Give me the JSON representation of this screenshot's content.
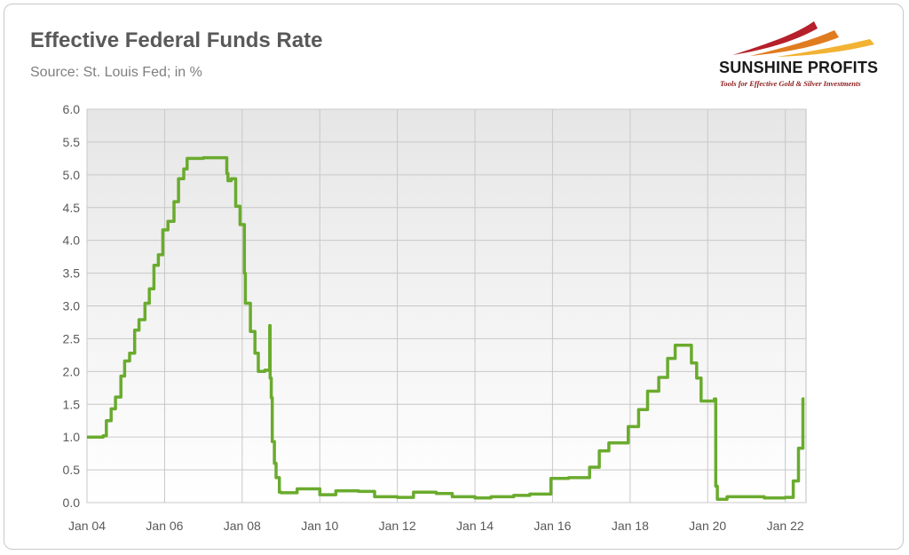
{
  "header": {
    "title": "Effective Federal Funds Rate",
    "subtitle": "Source: St. Louis Fed; in %"
  },
  "logo": {
    "name": "SUNSHINE PROFITS",
    "tagline": "Tools for Effective Gold & Silver Investments",
    "colors": [
      "#b5202a",
      "#e07b20",
      "#f2b233"
    ]
  },
  "chart_data": {
    "type": "line",
    "title": "Effective Federal Funds Rate",
    "subtitle": "Source: St. Louis Fed; in %",
    "xlabel": "",
    "ylabel": "",
    "x_axis_type": "date",
    "xlim": [
      "2004-01-01",
      "2022-07-15"
    ],
    "ylim": [
      0,
      6
    ],
    "y_ticks": [
      "0.0",
      "0.5",
      "1.0",
      "1.5",
      "2.0",
      "2.5",
      "3.0",
      "3.5",
      "4.0",
      "4.5",
      "5.0",
      "5.5",
      "6.0"
    ],
    "x_ticks": [
      {
        "label": "Jan 04",
        "date": "2004-01-01"
      },
      {
        "label": "Jan 06",
        "date": "2006-01-01"
      },
      {
        "label": "Jan 08",
        "date": "2008-01-01"
      },
      {
        "label": "Jan 10",
        "date": "2010-01-01"
      },
      {
        "label": "Jan 12",
        "date": "2012-01-01"
      },
      {
        "label": "Jan 14",
        "date": "2014-01-01"
      },
      {
        "label": "Jan 16",
        "date": "2016-01-01"
      },
      {
        "label": "Jan 18",
        "date": "2018-01-01"
      },
      {
        "label": "Jan 20",
        "date": "2020-01-01"
      },
      {
        "label": "Jan 22",
        "date": "2022-01-01"
      }
    ],
    "grid": true,
    "line_color": "#6aab2e",
    "series": [
      {
        "x": [
          "2004-01-01",
          "2004-06-01",
          "2004-07-01",
          "2004-08-15",
          "2004-09-25",
          "2004-11-15",
          "2004-12-20",
          "2005-02-05",
          "2005-03-25",
          "2005-05-05",
          "2005-06-30",
          "2005-08-10",
          "2005-09-22",
          "2005-11-03",
          "2005-12-15",
          "2006-02-01",
          "2006-03-30",
          "2006-05-12",
          "2006-06-30",
          "2006-08-01",
          "2007-01-01",
          "2007-07-01",
          "2007-08-09",
          "2007-08-20",
          "2007-09-19",
          "2007-11-01",
          "2007-12-12",
          "2008-01-22",
          "2008-01-31",
          "2008-03-19",
          "2008-04-30",
          "2008-06-01",
          "2008-08-01",
          "2008-09-16",
          "2008-09-20",
          "2008-10-01",
          "2008-10-10",
          "2008-10-30",
          "2008-11-15",
          "2008-12-16",
          "2009-01-01",
          "2009-06-01",
          "2010-01-01",
          "2010-06-01",
          "2011-01-01",
          "2011-06-01",
          "2012-01-01",
          "2012-06-01",
          "2013-01-01",
          "2013-06-01",
          "2014-01-01",
          "2014-06-01",
          "2015-01-01",
          "2015-06-01",
          "2015-12-15",
          "2015-12-17",
          "2016-06-01",
          "2016-12-15",
          "2017-03-16",
          "2017-06-15",
          "2017-12-14",
          "2018-03-22",
          "2018-06-14",
          "2018-09-27",
          "2018-12-20",
          "2019-03-01",
          "2019-07-01",
          "2019-08-01",
          "2019-09-19",
          "2019-10-31",
          "2019-12-31",
          "2020-03-04",
          "2020-03-17",
          "2020-04-01",
          "2020-07-01",
          "2021-01-01",
          "2021-06-17",
          "2021-12-31",
          "2022-03-17",
          "2022-05-05",
          "2022-06-16",
          "2022-06-30"
        ],
        "y": [
          1.0,
          1.02,
          1.25,
          1.43,
          1.61,
          1.93,
          2.16,
          2.28,
          2.63,
          2.79,
          3.04,
          3.26,
          3.62,
          3.78,
          4.16,
          4.29,
          4.59,
          4.94,
          5.09,
          5.25,
          5.26,
          5.26,
          5.02,
          4.91,
          4.94,
          4.52,
          4.24,
          3.5,
          3.04,
          2.61,
          2.28,
          2.0,
          2.02,
          2.7,
          1.9,
          1.6,
          0.93,
          0.6,
          0.38,
          0.16,
          0.15,
          0.21,
          0.12,
          0.18,
          0.17,
          0.09,
          0.08,
          0.16,
          0.14,
          0.09,
          0.07,
          0.09,
          0.11,
          0.13,
          0.13,
          0.37,
          0.38,
          0.54,
          0.79,
          0.91,
          1.16,
          1.42,
          1.7,
          1.91,
          2.2,
          2.4,
          2.4,
          2.13,
          1.9,
          1.55,
          1.55,
          1.58,
          0.25,
          0.05,
          0.09,
          0.09,
          0.07,
          0.08,
          0.33,
          0.83,
          1.58,
          1.58
        ]
      }
    ]
  }
}
